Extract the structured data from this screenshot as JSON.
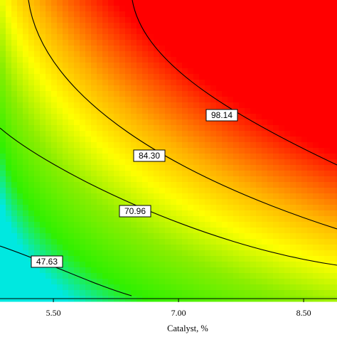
{
  "chart_data": {
    "type": "heatmap",
    "xlabel": "Catalyst, %",
    "xticks": [
      "5.50",
      "7.00",
      "8.50"
    ],
    "xtick_values": [
      5.5,
      7.0,
      8.5
    ],
    "xlim": [
      4.86,
      8.9
    ],
    "grid": false,
    "colormap": [
      "#00e8e0",
      "#30f000",
      "#8cee00",
      "#ffff00",
      "#ffb000",
      "#ff0000"
    ],
    "contours": [
      {
        "level": "98.14",
        "label": "98.14"
      },
      {
        "level": "84.30",
        "label": "84.30"
      },
      {
        "level": "70.96",
        "label": "70.96"
      },
      {
        "level": "47.63",
        "label": "47.63"
      }
    ]
  }
}
